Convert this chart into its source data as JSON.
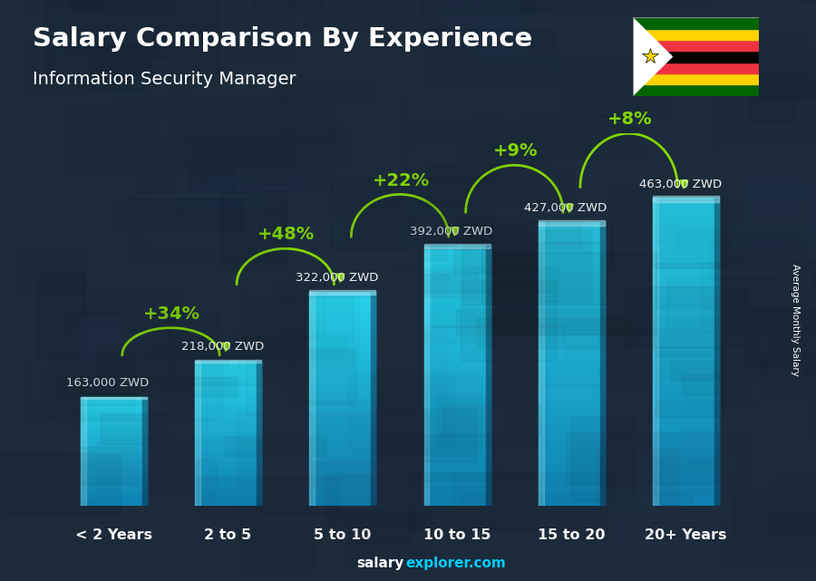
{
  "title": "Salary Comparison By Experience",
  "subtitle": "Information Security Manager",
  "categories": [
    "< 2 Years",
    "2 to 5",
    "5 to 10",
    "10 to 15",
    "15 to 20",
    "20+ Years"
  ],
  "values": [
    163000,
    218000,
    322000,
    392000,
    427000,
    463000
  ],
  "value_labels": [
    "163,000 ZWD",
    "218,000 ZWD",
    "322,000 ZWD",
    "392,000 ZWD",
    "427,000 ZWD",
    "463,000 ZWD"
  ],
  "pct_labels": [
    "+34%",
    "+48%",
    "+22%",
    "+9%",
    "+8%"
  ],
  "bar_color_main": "#29b6e8",
  "bar_color_light": "#7ddcf5",
  "bar_color_dark": "#1480a8",
  "bar_color_right": "#1a90c0",
  "bg_color": "#1c2b3a",
  "text_color": "#ffffff",
  "green_color": "#88dd00",
  "ylabel": "Average Monthly Salary",
  "footer_white": "salary",
  "footer_cyan": "explorer.com",
  "ylim": [
    0,
    560000
  ],
  "flag_stripes": [
    "#006400",
    "#FFD200",
    "#EF3340",
    "#000000",
    "#EF3340",
    "#FFD200",
    "#006400"
  ]
}
